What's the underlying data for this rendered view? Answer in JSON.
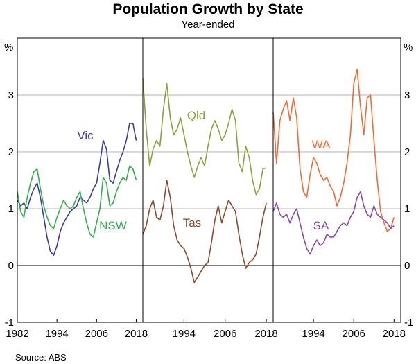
{
  "chart_data": {
    "type": "line",
    "title": "Population Growth by State",
    "subtitle": "Year-ended",
    "unit_label": "%",
    "ylim": [
      -1,
      4
    ],
    "y_ticks": [
      "-1",
      "0",
      "1",
      "2",
      "3"
    ],
    "source": "Source:   ABS",
    "colors": {
      "Vic": "#3a3d9a",
      "NSW": "#2fb04a",
      "Qld": "#8ca33c",
      "Tas": "#8a4a2e",
      "WA": "#f26b30",
      "SA": "#8a44a8"
    },
    "panels": [
      {
        "x_range": [
          1982,
          2020
        ],
        "x_ticks": [
          "1982",
          "1994",
          "2006",
          "2018"
        ],
        "series": [
          {
            "name": "Vic",
            "label": "Vic",
            "points": [
              [
                1982,
                1.15
              ],
              [
                1983,
                1.05
              ],
              [
                1984,
                1.1
              ],
              [
                1985,
                1.0
              ],
              [
                1986,
                1.2
              ],
              [
                1987,
                1.35
              ],
              [
                1988,
                1.45
              ],
              [
                1989,
                1.2
              ],
              [
                1990,
                0.85
              ],
              [
                1991,
                0.5
              ],
              [
                1992,
                0.25
              ],
              [
                1993,
                0.18
              ],
              [
                1994,
                0.35
              ],
              [
                1995,
                0.6
              ],
              [
                1996,
                0.75
              ],
              [
                1997,
                0.85
              ],
              [
                1998,
                0.95
              ],
              [
                1999,
                1.0
              ],
              [
                2000,
                1.05
              ],
              [
                2001,
                1.2
              ],
              [
                2002,
                1.15
              ],
              [
                2003,
                1.1
              ],
              [
                2004,
                1.2
              ],
              [
                2005,
                1.35
              ],
              [
                2006,
                1.45
              ],
              [
                2007,
                1.8
              ],
              [
                2008,
                2.2
              ],
              [
                2009,
                2.05
              ],
              [
                2010,
                1.5
              ],
              [
                2011,
                1.45
              ],
              [
                2012,
                1.65
              ],
              [
                2013,
                1.85
              ],
              [
                2014,
                2.0
              ],
              [
                2015,
                2.2
              ],
              [
                2016,
                2.5
              ],
              [
                2017,
                2.5
              ],
              [
                2018,
                2.2
              ]
            ]
          },
          {
            "name": "NSW",
            "label": "NSW",
            "points": [
              [
                1982,
                1.3
              ],
              [
                1983,
                0.95
              ],
              [
                1984,
                0.85
              ],
              [
                1985,
                1.2
              ],
              [
                1986,
                1.45
              ],
              [
                1987,
                1.65
              ],
              [
                1988,
                1.7
              ],
              [
                1989,
                1.35
              ],
              [
                1990,
                1.05
              ],
              [
                1991,
                0.85
              ],
              [
                1992,
                0.7
              ],
              [
                1993,
                0.65
              ],
              [
                1994,
                0.85
              ],
              [
                1995,
                1.0
              ],
              [
                1996,
                1.15
              ],
              [
                1997,
                1.05
              ],
              [
                1998,
                1.0
              ],
              [
                1999,
                1.05
              ],
              [
                2000,
                1.2
              ],
              [
                2001,
                1.3
              ],
              [
                2002,
                1.0
              ],
              [
                2003,
                0.75
              ],
              [
                2004,
                0.55
              ],
              [
                2005,
                0.5
              ],
              [
                2006,
                0.75
              ],
              [
                2007,
                1.0
              ],
              [
                2008,
                1.55
              ],
              [
                2009,
                1.45
              ],
              [
                2010,
                1.05
              ],
              [
                2011,
                1.1
              ],
              [
                2012,
                1.3
              ],
              [
                2013,
                1.45
              ],
              [
                2014,
                1.55
              ],
              [
                2015,
                1.5
              ],
              [
                2016,
                1.75
              ],
              [
                2017,
                1.7
              ],
              [
                2018,
                1.5
              ]
            ]
          }
        ]
      },
      {
        "x_range": [
          1982,
          2020
        ],
        "x_ticks": [
          "1994",
          "2006",
          "2018"
        ],
        "series": [
          {
            "name": "Qld",
            "label": "Qld",
            "points": [
              [
                1982,
                3.3
              ],
              [
                1983,
                2.4
              ],
              [
                1984,
                1.75
              ],
              [
                1985,
                2.05
              ],
              [
                1986,
                2.2
              ],
              [
                1987,
                2.1
              ],
              [
                1988,
                2.75
              ],
              [
                1989,
                3.2
              ],
              [
                1990,
                2.6
              ],
              [
                1991,
                2.3
              ],
              [
                1992,
                2.4
              ],
              [
                1993,
                2.6
              ],
              [
                1994,
                2.3
              ],
              [
                1995,
                2.0
              ],
              [
                1996,
                1.75
              ],
              [
                1997,
                1.55
              ],
              [
                1998,
                1.75
              ],
              [
                1999,
                1.9
              ],
              [
                2000,
                1.75
              ],
              [
                2001,
                2.1
              ],
              [
                2002,
                2.4
              ],
              [
                2003,
                2.55
              ],
              [
                2004,
                2.4
              ],
              [
                2005,
                2.2
              ],
              [
                2006,
                2.3
              ],
              [
                2007,
                2.5
              ],
              [
                2008,
                2.75
              ],
              [
                2009,
                2.55
              ],
              [
                2010,
                1.8
              ],
              [
                2011,
                1.65
              ],
              [
                2012,
                2.1
              ],
              [
                2013,
                1.9
              ],
              [
                2014,
                1.5
              ],
              [
                2015,
                1.25
              ],
              [
                2016,
                1.35
              ],
              [
                2017,
                1.7
              ],
              [
                2018,
                1.72
              ]
            ]
          },
          {
            "name": "Tas",
            "label": "Tas",
            "points": [
              [
                1982,
                0.55
              ],
              [
                1983,
                0.7
              ],
              [
                1984,
                1.0
              ],
              [
                1985,
                1.15
              ],
              [
                1986,
                0.85
              ],
              [
                1987,
                0.8
              ],
              [
                1988,
                1.05
              ],
              [
                1989,
                1.5
              ],
              [
                1990,
                1.2
              ],
              [
                1991,
                0.7
              ],
              [
                1992,
                0.45
              ],
              [
                1993,
                0.35
              ],
              [
                1994,
                0.3
              ],
              [
                1995,
                0.15
              ],
              [
                1996,
                -0.05
              ],
              [
                1997,
                -0.3
              ],
              [
                1998,
                -0.2
              ],
              [
                1999,
                -0.1
              ],
              [
                2000,
                0.0
              ],
              [
                2001,
                0.05
              ],
              [
                2002,
                0.4
              ],
              [
                2003,
                0.8
              ],
              [
                2004,
                1.05
              ],
              [
                2005,
                0.75
              ],
              [
                2006,
                0.95
              ],
              [
                2007,
                1.15
              ],
              [
                2008,
                1.05
              ],
              [
                2009,
                0.95
              ],
              [
                2010,
                0.55
              ],
              [
                2011,
                0.2
              ],
              [
                2012,
                -0.05
              ],
              [
                2013,
                0.05
              ],
              [
                2014,
                0.1
              ],
              [
                2015,
                0.2
              ],
              [
                2016,
                0.5
              ],
              [
                2017,
                0.85
              ],
              [
                2018,
                1.1
              ]
            ]
          }
        ]
      },
      {
        "x_range": [
          1982,
          2020
        ],
        "x_ticks": [
          "1994",
          "2006",
          "2018"
        ],
        "series": [
          {
            "name": "WA",
            "label": "WA",
            "points": [
              [
                1982,
                2.7
              ],
              [
                1983,
                1.8
              ],
              [
                1984,
                2.55
              ],
              [
                1985,
                2.75
              ],
              [
                1986,
                2.9
              ],
              [
                1987,
                2.55
              ],
              [
                1988,
                2.95
              ],
              [
                1989,
                2.6
              ],
              [
                1990,
                1.7
              ],
              [
                1991,
                1.3
              ],
              [
                1992,
                1.2
              ],
              [
                1993,
                1.6
              ],
              [
                1994,
                1.9
              ],
              [
                1995,
                1.8
              ],
              [
                1996,
                1.6
              ],
              [
                1997,
                1.5
              ],
              [
                1998,
                1.55
              ],
              [
                1999,
                1.4
              ],
              [
                2000,
                1.3
              ],
              [
                2001,
                1.05
              ],
              [
                2002,
                1.2
              ],
              [
                2003,
                1.45
              ],
              [
                2004,
                1.8
              ],
              [
                2005,
                2.3
              ],
              [
                2006,
                3.2
              ],
              [
                2007,
                3.45
              ],
              [
                2008,
                2.8
              ],
              [
                2009,
                2.3
              ],
              [
                2010,
                2.95
              ],
              [
                2011,
                3.0
              ],
              [
                2012,
                2.2
              ],
              [
                2013,
                1.5
              ],
              [
                2014,
                0.95
              ],
              [
                2015,
                0.75
              ],
              [
                2016,
                0.6
              ],
              [
                2017,
                0.65
              ],
              [
                2018,
                0.85
              ]
            ]
          },
          {
            "name": "SA",
            "label": "SA",
            "points": [
              [
                1982,
                0.95
              ],
              [
                1983,
                1.1
              ],
              [
                1984,
                0.9
              ],
              [
                1985,
                0.85
              ],
              [
                1986,
                0.9
              ],
              [
                1987,
                0.75
              ],
              [
                1988,
                0.9
              ],
              [
                1989,
                1.0
              ],
              [
                1990,
                0.75
              ],
              [
                1991,
                0.5
              ],
              [
                1992,
                0.3
              ],
              [
                1993,
                0.2
              ],
              [
                1994,
                0.35
              ],
              [
                1995,
                0.45
              ],
              [
                1996,
                0.35
              ],
              [
                1997,
                0.4
              ],
              [
                1998,
                0.55
              ],
              [
                1999,
                0.5
              ],
              [
                2000,
                0.5
              ],
              [
                2001,
                0.6
              ],
              [
                2002,
                0.7
              ],
              [
                2003,
                0.75
              ],
              [
                2004,
                0.7
              ],
              [
                2005,
                0.85
              ],
              [
                2006,
                0.95
              ],
              [
                2007,
                1.2
              ],
              [
                2008,
                1.3
              ],
              [
                2009,
                1.05
              ],
              [
                2010,
                0.9
              ],
              [
                2011,
                0.85
              ],
              [
                2012,
                1.05
              ],
              [
                2013,
                0.9
              ],
              [
                2014,
                0.85
              ],
              [
                2015,
                0.8
              ],
              [
                2016,
                0.75
              ],
              [
                2017,
                0.65
              ],
              [
                2018,
                0.7
              ]
            ]
          }
        ]
      }
    ]
  }
}
